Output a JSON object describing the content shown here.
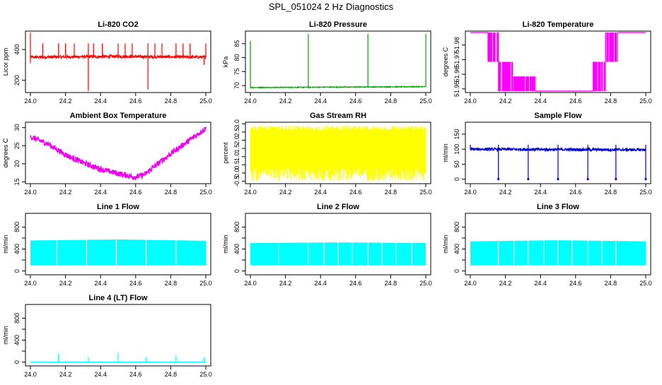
{
  "title": "SPL_051024  2 Hz Diagnostics",
  "chart_data": [
    {
      "type": "line",
      "title": "Li-820 CO2",
      "ylabel": "Licor ppm",
      "color": "#ff0000",
      "xlim": [
        24.0,
        25.0
      ],
      "ylim": [
        120,
        520
      ],
      "yticks": [
        200,
        400
      ],
      "pattern": "baseline-spikes",
      "baseline": {
        "x": [
          24.0,
          24.5,
          25.0
        ],
        "y": [
          350,
          355,
          350
        ],
        "noise": 10
      },
      "spikes_up": {
        "x": [
          24.0,
          24.07,
          24.16,
          24.2,
          24.25,
          24.33,
          24.36,
          24.41,
          24.5,
          24.54,
          24.58,
          24.67,
          24.71,
          24.75,
          24.83,
          24.87,
          24.91,
          25.0
        ],
        "y": [
          510,
          440,
          440,
          440,
          440,
          440,
          440,
          440,
          440,
          440,
          440,
          440,
          440,
          440,
          440,
          440,
          440,
          440
        ]
      },
      "spikes_down": {
        "x": [
          24.0,
          24.33,
          24.67,
          24.99
        ],
        "y": [
          310,
          130,
          140,
          300
        ]
      }
    },
    {
      "type": "line",
      "title": "Li-820 Pressure",
      "ylabel": "kPa",
      "color": "#00aa00",
      "xlim": [
        24.0,
        25.0
      ],
      "ylim": [
        67.5,
        89.5
      ],
      "yticks": [
        70,
        75,
        80,
        85
      ],
      "pattern": "baseline-spikes",
      "baseline": {
        "x": [
          24.0,
          25.0
        ],
        "y": [
          69.3,
          69.6
        ],
        "noise": 0.15
      },
      "spikes_up": {
        "x": [
          24.0,
          24.33,
          24.67,
          25.0
        ],
        "y": [
          86,
          88.5,
          88.5,
          88.5
        ]
      },
      "spikes_down": {
        "x": [],
        "y": []
      }
    },
    {
      "type": "line",
      "title": "Li-820 Temperature",
      "ylabel": "degrees C",
      "color": "#ff00ff",
      "xlim": [
        24.0,
        25.0
      ],
      "ylim": [
        51.9475,
        51.9895
      ],
      "yticks": [
        51.95,
        51.96,
        51.97,
        51.98
      ],
      "ytick_labels": [
        "51.95",
        "51.96",
        "51.97",
        "51.98"
      ],
      "pattern": "quantized-band",
      "levels": [
        51.9485,
        51.9585,
        51.9685,
        51.9885
      ],
      "segments": [
        {
          "x0": 24.0,
          "x1": 24.1,
          "lo": 51.9885,
          "hi": 51.9885
        },
        {
          "x0": 24.1,
          "x1": 24.16,
          "lo": 51.9685,
          "hi": 51.9885
        },
        {
          "x0": 24.16,
          "x1": 24.24,
          "lo": 51.9485,
          "hi": 51.9685
        },
        {
          "x0": 24.24,
          "x1": 24.37,
          "lo": 51.9485,
          "hi": 51.9585
        },
        {
          "x0": 24.37,
          "x1": 24.7,
          "lo": 51.9485,
          "hi": 51.9485
        },
        {
          "x0": 24.7,
          "x1": 24.77,
          "lo": 51.9485,
          "hi": 51.9685
        },
        {
          "x0": 24.77,
          "x1": 24.84,
          "lo": 51.9685,
          "hi": 51.9885
        },
        {
          "x0": 24.84,
          "x1": 25.0,
          "lo": 51.9885,
          "hi": 51.9885
        }
      ]
    },
    {
      "type": "line",
      "title": "Ambient Box Temperature",
      "ylabel": "degrees C",
      "color": "#ee00ee",
      "xlim": [
        24.0,
        25.0
      ],
      "ylim": [
        14.5,
        31.5
      ],
      "yticks": [
        15,
        20,
        25,
        30
      ],
      "pattern": "noisy-curve",
      "noise": 0.8,
      "curve": {
        "x": [
          24.0,
          24.1,
          24.2,
          24.3,
          24.4,
          24.5,
          24.6,
          24.65,
          24.7,
          24.8,
          24.9,
          25.0
        ],
        "y": [
          27.5,
          25.5,
          22.5,
          20.3,
          18.5,
          17.3,
          16.3,
          17.0,
          19.0,
          22.8,
          26.3,
          29.8
        ]
      }
    },
    {
      "type": "line",
      "title": "Gas Stream RH",
      "ylabel": "percent",
      "color": "#ffff00",
      "xlim": [
        24.0,
        25.0
      ],
      "ylim": [
        -0.65,
        3.1
      ],
      "yticks": [
        -0.5,
        0.0,
        0.5,
        1.0,
        1.5,
        2.0,
        2.5,
        3.0
      ],
      "ytick_labels": [
        "-0.5",
        "0.0",
        "0.5",
        "1.0",
        "1.5",
        "2.0",
        "2.5",
        "3.0"
      ],
      "pattern": "noise-band",
      "band": {
        "lo": -0.5,
        "hi": 2.9,
        "dense_lo": 0.3,
        "dense_hi": 2.6
      }
    },
    {
      "type": "line",
      "title": "Sample Flow",
      "ylabel": "ml/min",
      "color": "#0000cc",
      "xlim": [
        24.0,
        25.0
      ],
      "ylim": [
        -15,
        190
      ],
      "yticks": [
        0,
        50,
        100,
        150
      ],
      "pattern": "baseline-spikes",
      "baseline": {
        "x": [
          24.0,
          25.0
        ],
        "y": [
          100,
          98
        ],
        "noise": 5
      },
      "spikes_up": {
        "x": [
          24.0,
          24.16,
          24.33,
          24.5,
          24.67,
          24.83,
          25.0
        ],
        "y": [
          115,
          115,
          115,
          115,
          115,
          115,
          115
        ]
      },
      "spikes_down": {
        "x": [
          24.16,
          24.33,
          24.5,
          24.67,
          24.83,
          25.0
        ],
        "y": [
          0,
          0,
          0,
          0,
          0,
          0
        ]
      }
    },
    {
      "type": "line",
      "title": "Line 1 Flow",
      "ylabel": "ml/min",
      "color": "#00ffff",
      "xlim": [
        24.0,
        25.0
      ],
      "ylim": [
        -70,
        1050
      ],
      "yticks": [
        0,
        200,
        400,
        600,
        800
      ],
      "ytick_labels": [
        "0",
        "",
        "400",
        "",
        "800"
      ],
      "pattern": "block-band",
      "band": {
        "x": [
          24.0,
          24.5,
          25.0
        ],
        "lo": [
          100,
          100,
          100
        ],
        "hi": [
          555,
          575,
          550
        ]
      },
      "gaps": [
        24.15,
        24.32,
        24.49,
        24.66,
        24.83
      ]
    },
    {
      "type": "line",
      "title": "Line 2 Flow",
      "ylabel": "ml/min",
      "color": "#00ffff",
      "xlim": [
        24.0,
        25.0
      ],
      "ylim": [
        -70,
        1050
      ],
      "yticks": [
        0,
        200,
        400,
        600,
        800
      ],
      "ytick_labels": [
        "0",
        "",
        "400",
        "",
        "800"
      ],
      "pattern": "block-band",
      "band": {
        "x": [
          24.0,
          24.5,
          25.0
        ],
        "lo": [
          100,
          100,
          100
        ],
        "hi": [
          510,
          520,
          510
        ]
      },
      "gaps": [
        24.16,
        24.33,
        24.42,
        24.5,
        24.58,
        24.67,
        24.75,
        24.83,
        24.92
      ]
    },
    {
      "type": "line",
      "title": "Line 3 Flow",
      "ylabel": "ml/min",
      "color": "#00ffff",
      "xlim": [
        24.0,
        25.0
      ],
      "ylim": [
        -70,
        1050
      ],
      "yticks": [
        0,
        200,
        400,
        600,
        800
      ],
      "ytick_labels": [
        "0",
        "",
        "400",
        "",
        "800"
      ],
      "pattern": "block-band",
      "band": {
        "x": [
          24.0,
          24.5,
          25.0
        ],
        "lo": [
          100,
          100,
          100
        ],
        "hi": [
          540,
          560,
          540
        ]
      },
      "gaps": [
        24.16,
        24.25,
        24.33,
        24.42,
        24.5,
        24.58,
        24.67,
        24.75,
        24.83
      ]
    },
    {
      "type": "line",
      "title": "Line 4 (LT) Flow",
      "ylabel": "ml/min",
      "color": "#00ffff",
      "xlim": [
        24.0,
        25.0
      ],
      "ylim": [
        -70,
        1050
      ],
      "yticks": [
        0,
        200,
        400,
        600,
        800
      ],
      "ytick_labels": [
        "0",
        "",
        "400",
        "",
        "800"
      ],
      "pattern": "baseline-spikes",
      "baseline": {
        "x": [
          24.0,
          25.0
        ],
        "y": [
          0,
          0
        ],
        "noise": 3
      },
      "spikes_up": {
        "x": [
          24.16,
          24.33,
          24.5,
          24.66,
          24.83,
          24.99
        ],
        "y": [
          150,
          90,
          170,
          100,
          120,
          90
        ]
      },
      "spikes_down": {
        "x": [],
        "y": []
      }
    }
  ],
  "xticks": [
    24.0,
    24.2,
    24.4,
    24.6,
    24.8,
    25.0
  ],
  "xtick_labels": [
    "24.0",
    "24.2",
    "24.4",
    "24.6",
    "24.8",
    "25.0"
  ]
}
